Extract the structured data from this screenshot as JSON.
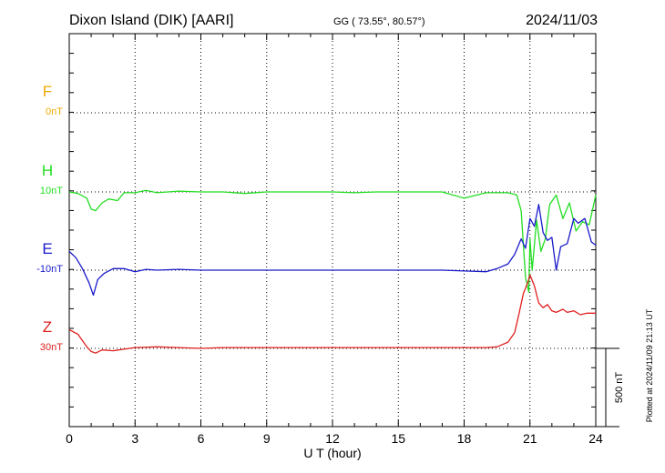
{
  "header": {
    "station": "Dixon Island (DIK)  [AARI]",
    "coords": "GG ( 73.55°,  80.57°)",
    "date": "2024/11/03"
  },
  "chart_data": {
    "type": "line",
    "xlabel": "U T (hour)",
    "xlim": [
      0,
      24
    ],
    "x_ticks": [
      0,
      3,
      6,
      9,
      12,
      15,
      18,
      21,
      24
    ],
    "y_unit": "nT",
    "scale_bar_nT": 500,
    "scale_bar_label": "500 nT",
    "plotted_note": "Plotted at 2024/11/09 21:13 UT",
    "series": [
      {
        "name": "F",
        "baseline_label": "0nT",
        "color": "#f0a800",
        "values": []
      },
      {
        "name": "H",
        "baseline_label": "10nT",
        "color": "#22dd22",
        "points": [
          [
            0,
            0
          ],
          [
            0.4,
            -10
          ],
          [
            0.8,
            -40
          ],
          [
            1,
            -110
          ],
          [
            1.2,
            -120
          ],
          [
            1.5,
            -70
          ],
          [
            1.8,
            -45
          ],
          [
            2.2,
            -55
          ],
          [
            2.5,
            -5
          ],
          [
            3,
            -5
          ],
          [
            3.5,
            10
          ],
          [
            4,
            -5
          ],
          [
            5,
            5
          ],
          [
            6,
            0
          ],
          [
            7,
            0
          ],
          [
            8,
            -10
          ],
          [
            9,
            0
          ],
          [
            10,
            0
          ],
          [
            11,
            0
          ],
          [
            12,
            0
          ],
          [
            13,
            -5
          ],
          [
            14,
            0
          ],
          [
            15,
            0
          ],
          [
            16,
            0
          ],
          [
            17,
            0
          ],
          [
            18,
            -40
          ],
          [
            19,
            -5
          ],
          [
            20,
            -5
          ],
          [
            20.4,
            -20
          ],
          [
            20.6,
            -120
          ],
          [
            20.8,
            -550
          ],
          [
            20.95,
            -640
          ],
          [
            21,
            -300
          ],
          [
            21.1,
            -500
          ],
          [
            21.3,
            -180
          ],
          [
            21.5,
            -380
          ],
          [
            21.7,
            -300
          ],
          [
            21.9,
            -80
          ],
          [
            22.2,
            -20
          ],
          [
            22.5,
            -170
          ],
          [
            22.8,
            -70
          ],
          [
            23.1,
            -250
          ],
          [
            23.4,
            -190
          ],
          [
            23.7,
            -210
          ],
          [
            24,
            -20
          ]
        ]
      },
      {
        "name": "E",
        "baseline_label": "-10nT",
        "color": "#1a1acc",
        "points": [
          [
            0,
            120
          ],
          [
            0.3,
            80
          ],
          [
            0.6,
            10
          ],
          [
            0.9,
            -80
          ],
          [
            1.1,
            -160
          ],
          [
            1.3,
            -60
          ],
          [
            1.6,
            -20
          ],
          [
            2,
            10
          ],
          [
            2.5,
            10
          ],
          [
            3,
            -10
          ],
          [
            3.5,
            5
          ],
          [
            4,
            0
          ],
          [
            5,
            5
          ],
          [
            6,
            0
          ],
          [
            7,
            0
          ],
          [
            8,
            0
          ],
          [
            9,
            0
          ],
          [
            10,
            0
          ],
          [
            11,
            0
          ],
          [
            12,
            0
          ],
          [
            13,
            0
          ],
          [
            14,
            0
          ],
          [
            15,
            0
          ],
          [
            16,
            0
          ],
          [
            17,
            0
          ],
          [
            18,
            -5
          ],
          [
            19,
            -10
          ],
          [
            19.5,
            10
          ],
          [
            20,
            40
          ],
          [
            20.3,
            100
          ],
          [
            20.6,
            200
          ],
          [
            20.8,
            140
          ],
          [
            21,
            330
          ],
          [
            21.2,
            280
          ],
          [
            21.4,
            420
          ],
          [
            21.6,
            240
          ],
          [
            21.8,
            190
          ],
          [
            22,
            210
          ],
          [
            22.2,
            0
          ],
          [
            22.4,
            150
          ],
          [
            22.7,
            170
          ],
          [
            23,
            330
          ],
          [
            23.2,
            300
          ],
          [
            23.5,
            330
          ],
          [
            23.8,
            180
          ],
          [
            24,
            160
          ]
        ]
      },
      {
        "name": "Z",
        "baseline_label": "30nT",
        "color": "#e02020",
        "points": [
          [
            0,
            120
          ],
          [
            0.4,
            90
          ],
          [
            0.8,
            10
          ],
          [
            1,
            -20
          ],
          [
            1.2,
            -30
          ],
          [
            1.5,
            -10
          ],
          [
            2,
            -15
          ],
          [
            2.5,
            -5
          ],
          [
            3,
            5
          ],
          [
            4,
            10
          ],
          [
            5,
            5
          ],
          [
            6,
            0
          ],
          [
            7,
            5
          ],
          [
            8,
            5
          ],
          [
            9,
            5
          ],
          [
            10,
            5
          ],
          [
            11,
            5
          ],
          [
            12,
            5
          ],
          [
            13,
            5
          ],
          [
            14,
            5
          ],
          [
            15,
            5
          ],
          [
            16,
            5
          ],
          [
            17,
            5
          ],
          [
            18,
            5
          ],
          [
            19,
            5
          ],
          [
            19.5,
            10
          ],
          [
            20,
            40
          ],
          [
            20.3,
            100
          ],
          [
            20.5,
            220
          ],
          [
            20.7,
            350
          ],
          [
            20.9,
            420
          ],
          [
            21,
            470
          ],
          [
            21.2,
            400
          ],
          [
            21.4,
            290
          ],
          [
            21.6,
            260
          ],
          [
            21.8,
            280
          ],
          [
            22,
            240
          ],
          [
            22.2,
            230
          ],
          [
            22.5,
            250
          ],
          [
            22.7,
            230
          ],
          [
            23,
            240
          ],
          [
            23.3,
            215
          ],
          [
            23.6,
            225
          ],
          [
            24,
            225
          ]
        ]
      }
    ]
  }
}
